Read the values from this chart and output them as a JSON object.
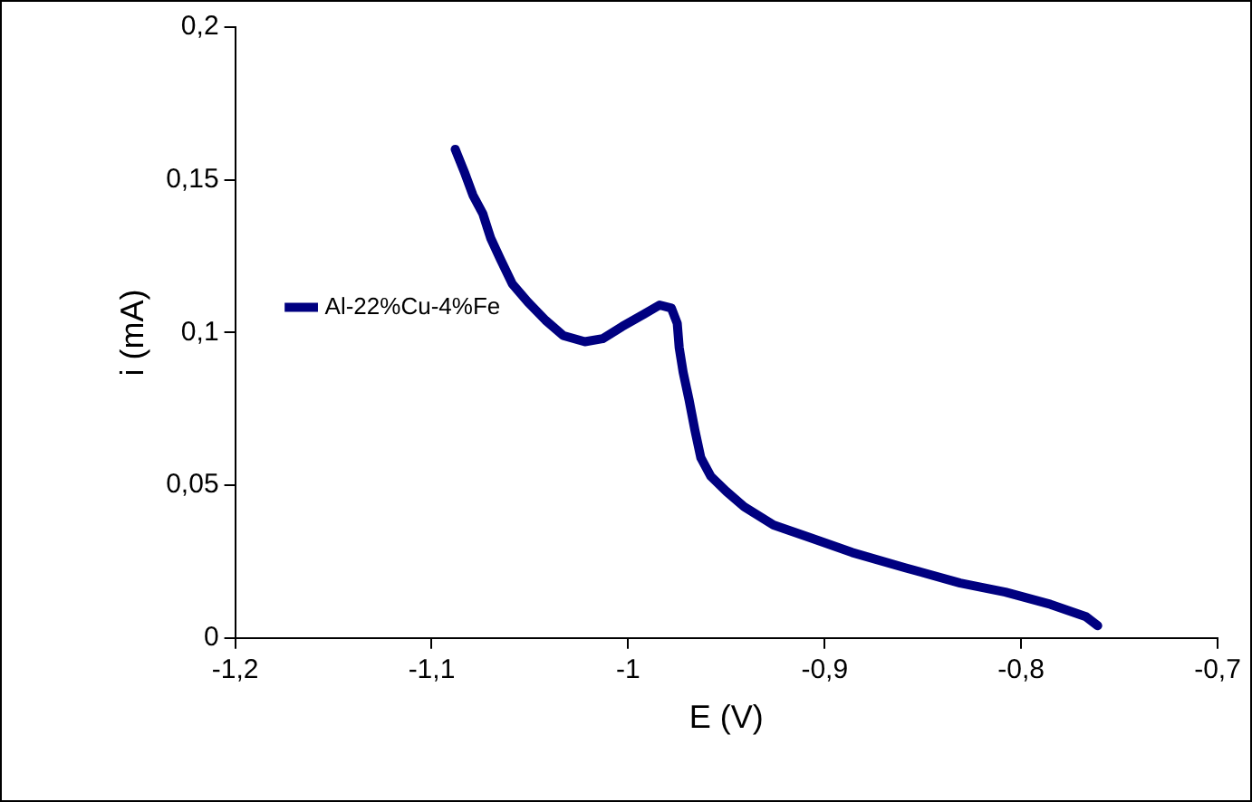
{
  "chart_data": {
    "type": "line",
    "marker": "none",
    "line_style": "solid",
    "xlabel": "E (V)",
    "ylabel": "i (mA)",
    "xlim": [
      -1.2,
      -0.7
    ],
    "xticks": [
      {
        "value": -1.2,
        "label": "-1,2"
      },
      {
        "value": -1.1,
        "label": "-1,1"
      },
      {
        "value": -1,
        "label": "-1"
      },
      {
        "value": -0.9,
        "label": "-0,9"
      },
      {
        "value": -0.8,
        "label": "-0,8"
      },
      {
        "value": -0.7,
        "label": "-0,7"
      }
    ],
    "ylim": [
      0,
      0.2
    ],
    "yticks": [
      0,
      {
        "value": 0.05,
        "label": "0,05"
      },
      {
        "value": 0.1,
        "label": "0,1"
      },
      {
        "value": 0.15,
        "label": "0,15"
      },
      {
        "value": 0.2,
        "label": "0,2"
      }
    ],
    "grid": false,
    "legend": "top",
    "series": [
      {
        "name": "Al-22%Cu-4%Fe",
        "color": "#000080",
        "x": [
          -1.088,
          -1.083,
          -1.079,
          -1.074,
          -1.07,
          -1.065,
          -1.059,
          -1.051,
          -1.042,
          -1.033,
          -1.022,
          -1.013,
          -1.003,
          -0.992,
          -0.984,
          -0.978,
          -0.975,
          -0.974,
          -0.972,
          -0.969,
          -0.966,
          -0.963,
          -0.958,
          -0.95,
          -0.941,
          -0.926,
          -0.908,
          -0.886,
          -0.859,
          -0.831,
          -0.808,
          -0.785,
          -0.767,
          -0.761
        ],
        "values": [
          0.16,
          0.152,
          0.145,
          0.139,
          0.131,
          0.124,
          0.116,
          0.11,
          0.104,
          0.099,
          0.097,
          0.098,
          0.102,
          0.106,
          0.109,
          0.108,
          0.103,
          0.095,
          0.087,
          0.078,
          0.068,
          0.059,
          0.053,
          0.048,
          0.043,
          0.037,
          0.033,
          0.028,
          0.023,
          0.018,
          0.015,
          0.011,
          0.007,
          0.004
        ]
      }
    ]
  }
}
